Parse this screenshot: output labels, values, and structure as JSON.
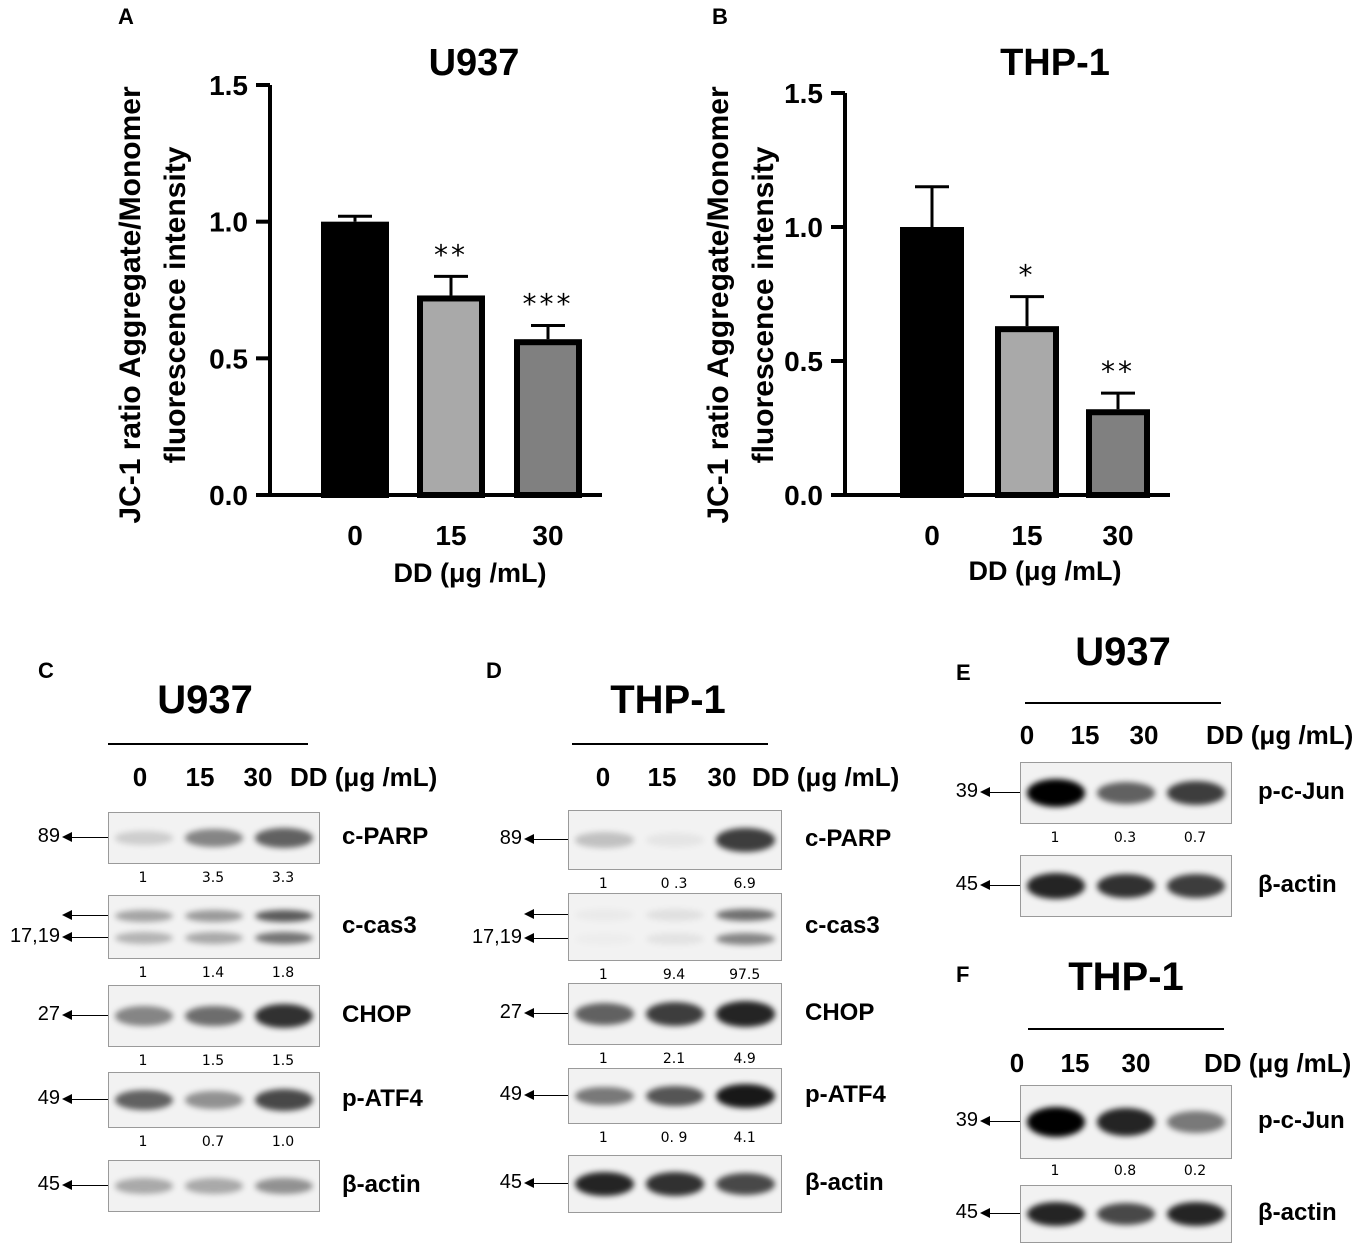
{
  "panel_letters": [
    "A",
    "B",
    "C",
    "D",
    "E",
    "F"
  ],
  "units_label": "DD (μg /mL)",
  "lanes": [
    "0",
    "15",
    "30"
  ],
  "chart_data": [
    {
      "type": "bar",
      "title": "U937",
      "ylabel_line1": "JC-1 ratio Aggregate/Monomer",
      "ylabel_line2": "fluorescence intensity",
      "xlabel": "DD (μg /mL)",
      "categories": [
        "0",
        "15",
        "30"
      ],
      "values": [
        1.0,
        0.73,
        0.57
      ],
      "errors": [
        0.02,
        0.07,
        0.05
      ],
      "significance": [
        "",
        "**",
        "***"
      ],
      "ylim": [
        0,
        1.5
      ],
      "yticks": [
        "0.0",
        "0.5",
        "1.0",
        "1.5"
      ],
      "bar_colors": [
        "#000000",
        "#a9a9a9",
        "#808080"
      ]
    },
    {
      "type": "bar",
      "title": "THP-1",
      "ylabel_line1": "JC-1 ratio Aggregate/Monomer",
      "ylabel_line2": "fluorescence intensity",
      "xlabel": "DD (μg /mL)",
      "categories": [
        "0",
        "15",
        "30"
      ],
      "values": [
        1.0,
        0.63,
        0.32
      ],
      "errors": [
        0.15,
        0.11,
        0.06
      ],
      "significance": [
        "",
        "*",
        "**"
      ],
      "ylim": [
        0,
        1.5
      ],
      "yticks": [
        "0.0",
        "0.5",
        "1.0",
        "1.5"
      ],
      "bar_colors": [
        "#000000",
        "#a9a9a9",
        "#808080"
      ]
    }
  ],
  "blots": {
    "C": {
      "title": "U937",
      "rows": [
        {
          "protein": "c-PARP",
          "mw": "89",
          "quant": [
            "1",
            "3.5",
            "3.3"
          ],
          "intensity": [
            0.15,
            0.45,
            0.6
          ]
        },
        {
          "protein": "c-cas3",
          "mw": "17,19",
          "quant": [
            "1",
            "1.4",
            "1.8"
          ],
          "intensity": [
            0.35,
            0.4,
            0.7
          ]
        },
        {
          "protein": "CHOP",
          "mw": "27",
          "quant": [
            "1",
            "1.5",
            "1.5"
          ],
          "intensity": [
            0.45,
            0.55,
            0.8
          ]
        },
        {
          "protein": "p-ATF4",
          "mw": "49",
          "quant": [
            "1",
            "0.7",
            "1.0"
          ],
          "intensity": [
            0.6,
            0.4,
            0.7
          ]
        },
        {
          "protein": "β-actin",
          "mw": "45",
          "quant": [],
          "intensity": [
            0.3,
            0.3,
            0.4
          ]
        }
      ]
    },
    "D": {
      "title": "THP-1",
      "rows": [
        {
          "protein": "c-PARP",
          "mw": "89",
          "quant": [
            "1",
            "0 .3",
            "6.9"
          ],
          "intensity": [
            0.2,
            0.05,
            0.75
          ]
        },
        {
          "protein": "c-cas3",
          "mw": "17,19",
          "quant": [
            "1",
            "9.4",
            "97.5"
          ],
          "intensity": [
            0.03,
            0.08,
            0.6
          ]
        },
        {
          "protein": "CHOP",
          "mw": "27",
          "quant": [
            "1",
            "2.1",
            "4.9"
          ],
          "intensity": [
            0.6,
            0.75,
            0.85
          ]
        },
        {
          "protein": "p-ATF4",
          "mw": "49",
          "quant": [
            "1",
            "0. 9",
            "4.1"
          ],
          "intensity": [
            0.5,
            0.65,
            0.9
          ]
        },
        {
          "protein": "β-actin",
          "mw": "45",
          "quant": [],
          "intensity": [
            0.85,
            0.8,
            0.7
          ]
        }
      ]
    },
    "E": {
      "title": "U937",
      "rows": [
        {
          "protein": "p-c-Jun",
          "mw": "39",
          "quant": [
            "1",
            "0.3",
            "0.7"
          ],
          "intensity": [
            1.0,
            0.6,
            0.75
          ]
        },
        {
          "protein": "β-actin",
          "mw": "45",
          "quant": [],
          "intensity": [
            0.85,
            0.8,
            0.75
          ]
        }
      ]
    },
    "F": {
      "title": "THP-1",
      "rows": [
        {
          "protein": "p-c-Jun",
          "mw": "39",
          "quant": [
            "1",
            "0.8",
            "0.2"
          ],
          "intensity": [
            1.0,
            0.85,
            0.5
          ]
        },
        {
          "protein": "β-actin",
          "mw": "45",
          "quant": [],
          "intensity": [
            0.85,
            0.7,
            0.85
          ]
        }
      ]
    }
  }
}
